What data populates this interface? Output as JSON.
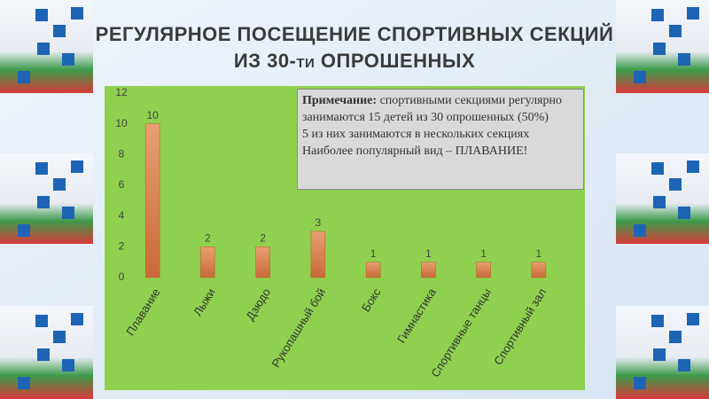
{
  "title": "РЕГУЛЯРНОЕ ПОСЕЩЕНИЕ СПОРТИВНЫХ СЕКЦИЙ ИЗ 30-ти ОПРОШЕННЫХ",
  "note": {
    "label": "Примечание:",
    "lines": [
      "спортивными секциями регулярно занимаются 15 детей из 30 опрошенных (50%)",
      "5 из них занимаются в нескольких секциях",
      "Наиболее популярный вид – ПЛАВАНИЕ!"
    ]
  },
  "chart_data": {
    "type": "bar",
    "categories": [
      "Плавание",
      "Лыжи",
      "Дзюдо",
      "Рукопашный бой",
      "Бокс",
      "Гимнастика",
      "Спортивные танцы",
      "Спортивный зал"
    ],
    "values": [
      10,
      2,
      2,
      3,
      1,
      1,
      1,
      1
    ],
    "color": "#c96a38",
    "ylim": [
      0,
      12
    ],
    "yticks": [
      0,
      2,
      4,
      6,
      8,
      10,
      12
    ],
    "grid": false,
    "data_labels": true
  }
}
